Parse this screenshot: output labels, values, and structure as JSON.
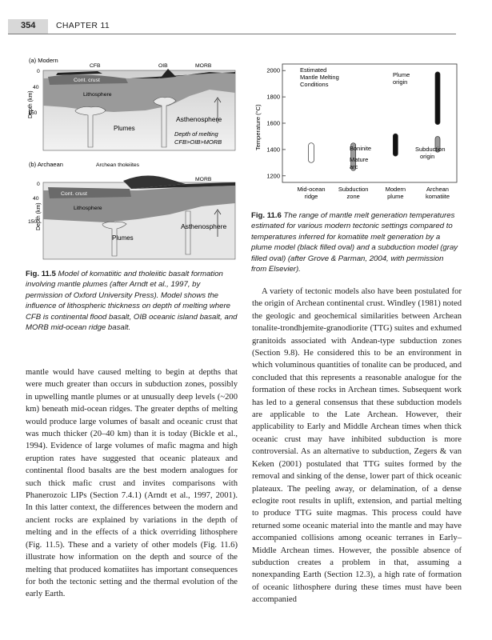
{
  "header": {
    "page_number": "354",
    "chapter": "CHAPTER 11"
  },
  "fig115": {
    "panel_a": {
      "label": "(a) Modern",
      "labels": {
        "cfb": "CFB",
        "oib": "OIB",
        "morb": "MORB",
        "cont_crust": "Cont. crust",
        "lithosphere": "Lithosphere",
        "asthenosphere": "Asthenosphere",
        "plumes": "Plumes",
        "depth_note_1": "Depth of melting",
        "depth_note_2": "CFB>OIB>MORB"
      },
      "ticks": [
        "0",
        "40",
        "150"
      ],
      "y_axis": "Depth (km)"
    },
    "panel_b": {
      "label": "(b) Archaean",
      "labels": {
        "tholeiites": "Archean tholeiites",
        "morb": "MORB",
        "cont_crust": "Cont. crust",
        "lithosphere": "Lithosphere",
        "asthenosphere": "Asthenosphere",
        "plumes": "Plumes"
      },
      "ticks": [
        "0",
        "40",
        "150"
      ],
      "y_axis": "Depth (km)"
    },
    "caption_label": "Fig. 11.5",
    "caption_text": "Model of komatiitic and tholeiitic basalt formation involving mantle plumes (after Arndt et al., 1997, by permission of Oxford University Press). Model shows the influence of lithospheric thickness on depth of melting where CFB is continental flood basalt, OIB oceanic island basalt, and MORB mid-ocean ridge basalt."
  },
  "fig116": {
    "caption_label": "Fig. 11.6",
    "caption_text": "The range of mantle melt generation temperatures estimated for various modern tectonic settings compared to temperatures inferred for komatiite melt generation by a plume model (black filled oval) and a subduction model (gray filled oval) (after Grove & Parman, 2004, with permission from Elsevier).",
    "y_axis_label": "Temperature (°C)",
    "title_lines": [
      "Estimated",
      "Mantle Melting",
      "Conditions"
    ],
    "annotations": {
      "plume_origin": [
        "Plume",
        "origin"
      ],
      "boninite": "Boninite",
      "mature_arc": [
        "Mature",
        "arc"
      ],
      "subduction_origin": [
        "Subduction",
        "origin"
      ]
    },
    "chart_data": {
      "type": "range",
      "ylim": [
        1150,
        2050
      ],
      "yticks": [
        1200,
        1400,
        1600,
        1800,
        2000
      ],
      "categories": [
        {
          "line1": "Mid-ocean",
          "line2": "ridge"
        },
        {
          "line1": "Subduction",
          "line2": "zone"
        },
        {
          "line1": "Modern",
          "line2": "plume"
        },
        {
          "line1": "Archean",
          "line2": "komatiite"
        }
      ],
      "ranges": [
        {
          "category": 0,
          "low": 1300,
          "high": 1450,
          "fill": "open"
        },
        {
          "category": 1,
          "low": 1240,
          "high": 1450,
          "fill": "gray"
        },
        {
          "category": 2,
          "low": 1350,
          "high": 1520,
          "fill": "black"
        },
        {
          "category": 3,
          "low": 1590,
          "high": 1990,
          "fill": "black"
        },
        {
          "category": 3,
          "low": 1380,
          "high": 1500,
          "fill": "gray"
        }
      ]
    }
  },
  "body_left": [
    "mantle would have caused melting to begin at depths that were much greater than occurs in subduction zones, possibly in upwelling mantle plumes or at unusually deep levels (~200 km) beneath mid-ocean ridges. The greater depths of melting would produce large volumes of basalt and oceanic crust that was much thicker (20–40 km) than it is today (Bickle et al., 1994). Evidence of large volumes of mafic magma and high eruption rates have suggested that oceanic plateaux and continental flood basalts are the best modern analogues for such thick mafic crust and invites comparisons with Phanerozoic LIPs (Section 7.4.1) (Arndt et al., 1997, 2001). In this latter context, the differences between the modern and ancient rocks are explained by variations in the depth of melting and in the effects of a thick overriding lithosphere (Fig. 11.5). These and a variety of other models (Fig. 11.6) illustrate how information on the depth and source of the melting that produced komatiites has important consequences for both the tectonic setting and the thermal evolution of the early Earth."
  ],
  "body_right": [
    "A variety of tectonic models also have been postulated for the origin of Archean continental crust. Windley (1981) noted the geologic and geochemical similarities between Archean tonalite-trondhjemite-granodiorite (TTG) suites and exhumed granitoids associated with Andean-type subduction zones (Section 9.8). He considered this to be an environment in which voluminous quantities of tonalite can be produced, and concluded that this represents a reasonable analogue for the formation of these rocks in Archean times. Subsequent work has led to a general consensus that these subduction models are applicable to the Late Archean. However, their applicability to Early and Middle Archean times when thick oceanic crust may have inhibited subduction is more controversial. As an alternative to subduction, Zegers & van Keken (2001) postulated that TTG suites formed by the removal and sinking of the dense, lower part of thick oceanic plateaux. The peeling away, or delamination, of a dense eclogite root results in uplift, extension, and partial melting to produce TTG suite magmas. This process could have returned some oceanic material into the mantle and may have accompanied collisions among oceanic terranes in Early–Middle Archean times. However, the possible absence of subduction creates a problem in that, assuming a nonexpanding Earth (Section 12.3), a high rate of formation of oceanic lithosphere during these times must have been accompanied"
  ]
}
